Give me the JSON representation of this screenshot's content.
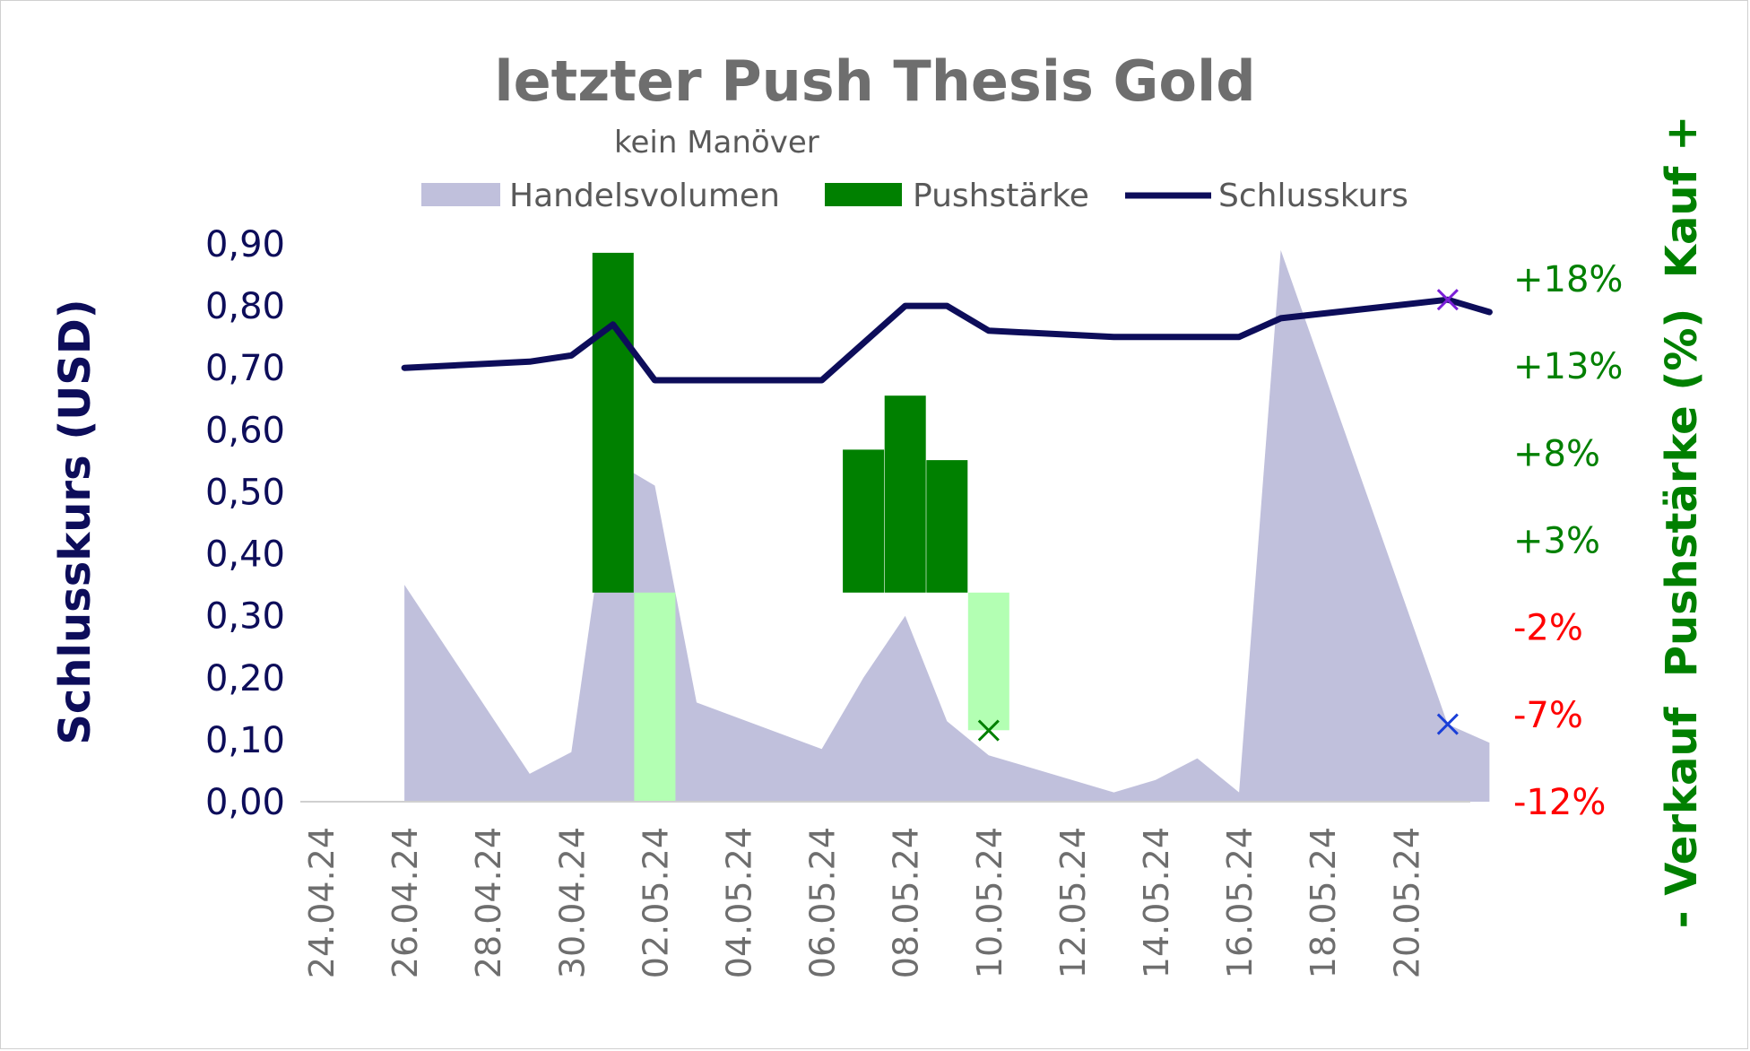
{
  "chart_data": {
    "type": "line",
    "title": "letzter Push Thesis Gold",
    "subtitle": "kein Manöver",
    "legend": {
      "placement": "top",
      "entries": [
        {
          "label": "Handelsvolumen",
          "color": "#c0c0dc",
          "kind": "area"
        },
        {
          "label": "Pushstärke",
          "color": "#008000",
          "kind": "bar"
        },
        {
          "label": "Schlusskurs",
          "color": "#0d0d5a",
          "kind": "line"
        }
      ]
    },
    "ylabel_left": "Schlusskurs (USD)",
    "ylabel_right": "- Verkauf  Pushstärke (%)  Kauf +",
    "ylim_left": [
      0,
      0.9
    ],
    "ylim_right": [
      -12,
      20
    ],
    "grid": false,
    "x_tick_labels": [
      "24.04.24",
      "26.04.24",
      "28.04.24",
      "30.04.24",
      "02.05.24",
      "04.05.24",
      "06.05.24",
      "08.05.24",
      "10.05.24",
      "12.05.24",
      "14.05.24",
      "16.05.24",
      "18.05.24",
      "20.05.24"
    ],
    "y_left_tick_labels": [
      "0,00",
      "0,10",
      "0,20",
      "0,30",
      "0,40",
      "0,50",
      "0,60",
      "0,70",
      "0,80",
      "0,90"
    ],
    "y_right_ticks": [
      {
        "label": "+18%",
        "value": 18,
        "color": "#008000"
      },
      {
        "label": "+13%",
        "value": 13,
        "color": "#008000"
      },
      {
        "label": "+8%",
        "value": 8,
        "color": "#008000"
      },
      {
        "label": "+3%",
        "value": 3,
        "color": "#008000"
      },
      {
        "label": "-2%",
        "value": -2,
        "color": "#ff0000"
      },
      {
        "label": "-7%",
        "value": -7,
        "color": "#ff0000"
      },
      {
        "label": "-12%",
        "value": -12,
        "color": "#ff0000"
      }
    ],
    "series": [
      {
        "name": "Handelsvolumen",
        "type": "area",
        "axis": "left",
        "color": "#c0c0dc",
        "points": [
          {
            "x": "26.04.24",
            "y": 0.35
          },
          {
            "x": "29.04.24",
            "y": 0.045
          },
          {
            "x": "30.04.24",
            "y": 0.08
          },
          {
            "x": "01.05.24",
            "y": 0.55
          },
          {
            "x": "02.05.24",
            "y": 0.51
          },
          {
            "x": "03.05.24",
            "y": 0.16
          },
          {
            "x": "06.05.24",
            "y": 0.085
          },
          {
            "x": "07.05.24",
            "y": 0.2
          },
          {
            "x": "08.05.24",
            "y": 0.3
          },
          {
            "x": "09.05.24",
            "y": 0.13
          },
          {
            "x": "10.05.24",
            "y": 0.075
          },
          {
            "x": "13.05.24",
            "y": 0.015
          },
          {
            "x": "14.05.24",
            "y": 0.035
          },
          {
            "x": "15.05.24",
            "y": 0.07
          },
          {
            "x": "16.05.24",
            "y": 0.015
          },
          {
            "x": "17.05.24",
            "y": 0.89
          },
          {
            "x": "21.05.24",
            "y": 0.125
          },
          {
            "x": "22.05.24",
            "y": 0.095
          }
        ]
      },
      {
        "name": "Schlusskurs",
        "type": "line",
        "axis": "left",
        "color": "#0d0d5a",
        "points": [
          {
            "x": "26.04.24",
            "y": 0.7
          },
          {
            "x": "29.04.24",
            "y": 0.71
          },
          {
            "x": "30.04.24",
            "y": 0.72
          },
          {
            "x": "01.05.24",
            "y": 0.77
          },
          {
            "x": "02.05.24",
            "y": 0.68
          },
          {
            "x": "06.05.24",
            "y": 0.68
          },
          {
            "x": "07.05.24",
            "y": 0.74
          },
          {
            "x": "08.05.24",
            "y": 0.8
          },
          {
            "x": "09.05.24",
            "y": 0.8
          },
          {
            "x": "10.05.24",
            "y": 0.76
          },
          {
            "x": "13.05.24",
            "y": 0.75
          },
          {
            "x": "16.05.24",
            "y": 0.75
          },
          {
            "x": "17.05.24",
            "y": 0.78
          },
          {
            "x": "21.05.24",
            "y": 0.81
          },
          {
            "x": "22.05.24",
            "y": 0.79
          }
        ]
      },
      {
        "name": "Pushstärke",
        "type": "bar",
        "axis": "right",
        "bars": [
          {
            "x": "01.05.24",
            "from": 0,
            "to": 19.5,
            "color": "#008000"
          },
          {
            "x": "02.05.24",
            "from": 0,
            "to": -12,
            "color": "#b3ffb3"
          },
          {
            "x": "07.05.24",
            "from": 0,
            "to": 8.2,
            "color": "#008000"
          },
          {
            "x": "08.05.24",
            "from": 0,
            "to": 11.3,
            "color": "#008000"
          },
          {
            "x": "09.05.24",
            "from": 0,
            "to": 7.6,
            "color": "#008000"
          },
          {
            "x": "10.05.24",
            "from": 0,
            "to": -7.9,
            "color": "#b3ffb3"
          }
        ]
      }
    ],
    "markers": [
      {
        "x": "10.05.24",
        "y": 0.115,
        "symbol": "×",
        "color": "#008000"
      },
      {
        "x": "21.05.24",
        "y": 0.81,
        "symbol": "×",
        "color": "#7b1fd8"
      },
      {
        "x": "21.05.24",
        "y": 0.125,
        "symbol": "×",
        "color": "#1a3fd8"
      }
    ]
  }
}
